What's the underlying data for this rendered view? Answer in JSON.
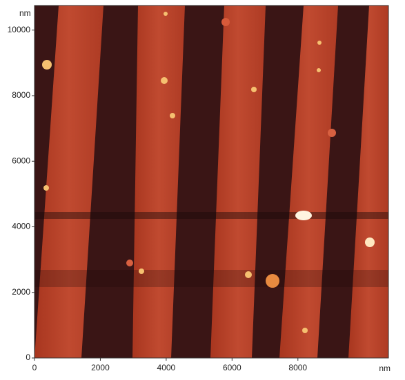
{
  "chart_data": {
    "type": "image",
    "x_unit": "nm",
    "y_unit": "nm",
    "xlim": [
      0,
      10750
    ],
    "ylim": [
      0,
      10750
    ],
    "xticks": [
      0,
      2000,
      4000,
      6000,
      8000
    ],
    "yticks": [
      0,
      2000,
      4000,
      6000,
      8000,
      10000
    ]
  }
}
